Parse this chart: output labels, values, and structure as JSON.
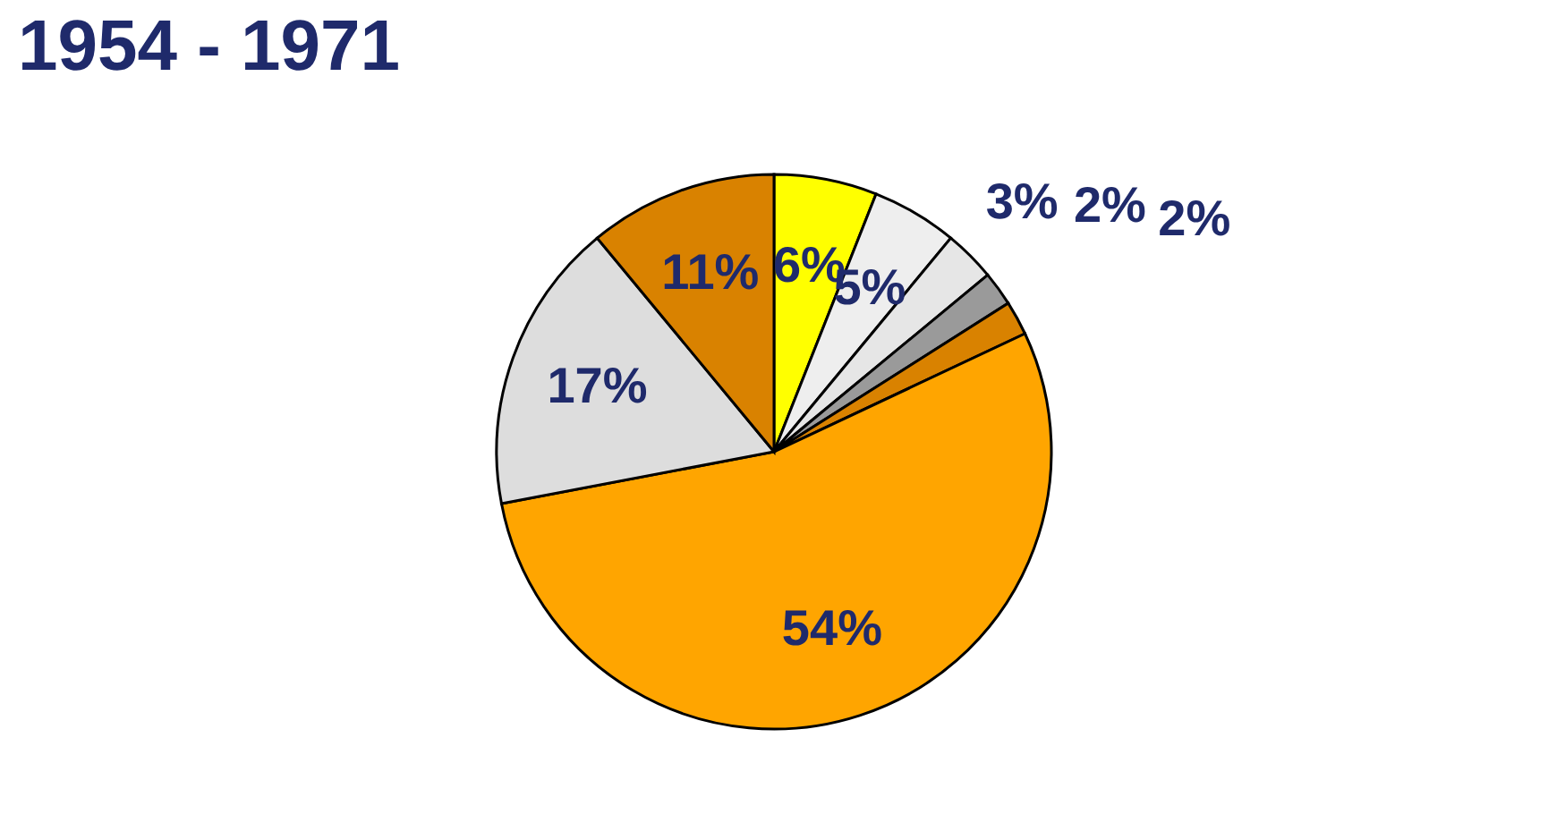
{
  "chart_data": {
    "type": "pie",
    "title": "1954 - 1971",
    "categories": [
      null,
      null,
      null,
      null,
      null,
      null,
      null,
      null
    ],
    "values": [
      6,
      5,
      3,
      2,
      2,
      54,
      17,
      11
    ],
    "colors": [
      "#ffff00",
      "#eeeeee",
      "#e6e6e6",
      "#9a9a9a",
      "#d98200",
      "#ffa500",
      "#dddddd",
      "#d98200"
    ],
    "value_labels": [
      "6%",
      "5%",
      "3%",
      "2%",
      "2%",
      "54%",
      "17%",
      "11%"
    ]
  }
}
